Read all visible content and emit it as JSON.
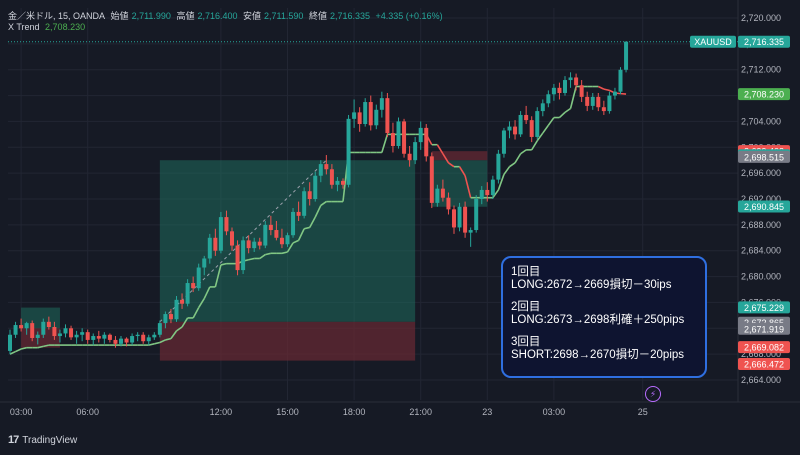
{
  "header": {
    "instrument": "金／米ドル, 15, OANDA",
    "open_label": "始値",
    "open_value": "2,711.990",
    "high_label": "高値",
    "high_value": "2,716.400",
    "low_label": "安値",
    "low_value": "2,711.590",
    "close_label": "終値",
    "close_value": "2,716.335",
    "change": "+4.335 (+0.16%)",
    "indicator_name": "X Trend",
    "indicator_value": "2,708.230"
  },
  "note": {
    "entries": [
      {
        "title": "1回目",
        "text": "LONG:2672→2669損切－30ips"
      },
      {
        "title": "2回目",
        "text": "LONG:2673→2698利確＋250pips"
      },
      {
        "title": "3回目",
        "text": "SHORT:2698→2670損切－20pips"
      }
    ]
  },
  "footer": {
    "brand": "TradingView",
    "logo": "17"
  },
  "colors": {
    "up": "#26a69a",
    "down": "#ef5350",
    "trend_up": "#81c784",
    "trend_down": "#ef5350",
    "profit_zone": "#1f6b5c",
    "loss_zone": "#6a2a33",
    "note_border": "#2f6fe0"
  },
  "chart_data": {
    "type": "candlestick",
    "y_axis": {
      "range": [
        2664,
        2720
      ],
      "ticks": [
        2720,
        2716,
        2712,
        2708,
        2704,
        2700,
        2696,
        2692,
        2688,
        2684,
        2680,
        2676,
        2672,
        2668,
        2664
      ],
      "tick_labels": [
        "2,720.000",
        "2,716.000",
        "2,712.000",
        "2,708.000",
        "2,704.000",
        "2,700.000",
        "2,696.000",
        "2,692.000",
        "2,688.000",
        "2,684.000",
        "2,680.000",
        "2,676.000",
        "2,672.000",
        "2,668.000",
        "2,664.000"
      ],
      "grid": true
    },
    "x_axis": {
      "tick_labels": [
        {
          "bar": 2,
          "label": "03:00"
        },
        {
          "bar": 14,
          "label": "06:00"
        },
        {
          "bar": 38,
          "label": "12:00"
        },
        {
          "bar": 50,
          "label": "15:00"
        },
        {
          "bar": 62,
          "label": "18:00"
        },
        {
          "bar": 74,
          "label": "21:00"
        },
        {
          "bar": 86,
          "label": "23"
        },
        {
          "bar": 98,
          "label": "03:00"
        },
        {
          "bar": 114,
          "label": "25"
        }
      ]
    },
    "price_labels": [
      {
        "value": 2716.335,
        "label": "2,716.335",
        "tag": "XAUUSD",
        "color": "#26a69a"
      },
      {
        "value": 2708.23,
        "label": "2,708.230",
        "color": "#4caf50"
      },
      {
        "value": 2699.402,
        "label": "2,699.402",
        "color": "#ef5350"
      },
      {
        "value": 2698.77,
        "label": "2,698.770",
        "color": "#26a69a"
      },
      {
        "value": 2698.515,
        "label": "2,698.515",
        "color": "#787b86"
      },
      {
        "value": 2690.845,
        "label": "2,690.845",
        "color": "#26a69a"
      },
      {
        "value": 2675.229,
        "label": "2,675.229",
        "color": "#26a69a"
      },
      {
        "value": 2672.865,
        "label": "2,672.865",
        "color": "#787b86"
      },
      {
        "value": 2671.919,
        "label": "2,671.919",
        "color": "#787b86"
      },
      {
        "value": 2669.082,
        "label": "2,669.082",
        "color": "#ef5350"
      },
      {
        "value": 2666.472,
        "label": "2,666.472",
        "color": "#ef5350"
      }
    ],
    "position_boxes": [
      {
        "side": "long",
        "start_bar": 2,
        "end_bar": 9,
        "entry": 2672,
        "target": 2675.2,
        "stop": 2669
      },
      {
        "side": "long",
        "start_bar": 27,
        "end_bar": 73,
        "entry": 2673,
        "target": 2698,
        "stop": 2667
      },
      {
        "side": "short",
        "start_bar": 76,
        "end_bar": 86,
        "entry": 2698,
        "target": 2690.8,
        "stop": 2699.4
      }
    ],
    "candles": [
      [
        2668.5,
        2671.8,
        2668.0,
        2671.0
      ],
      [
        2671.0,
        2673.0,
        2670.5,
        2672.5
      ],
      [
        2672.5,
        2673.5,
        2671.5,
        2672.0
      ],
      [
        2672.0,
        2673.0,
        2671.0,
        2672.8
      ],
      [
        2672.8,
        2673.2,
        2670.0,
        2670.5
      ],
      [
        2670.5,
        2671.5,
        2669.5,
        2671.0
      ],
      [
        2671.0,
        2673.5,
        2670.5,
        2673.0
      ],
      [
        2673.0,
        2673.8,
        2671.8,
        2672.2
      ],
      [
        2672.2,
        2673.0,
        2670.2,
        2670.8
      ],
      [
        2670.8,
        2671.8,
        2669.8,
        2671.2
      ],
      [
        2671.2,
        2672.6,
        2670.6,
        2672.0
      ],
      [
        2672.0,
        2672.4,
        2670.2,
        2670.6
      ],
      [
        2670.6,
        2671.6,
        2669.6,
        2671.0
      ],
      [
        2671.0,
        2672.0,
        2670.0,
        2671.4
      ],
      [
        2671.4,
        2671.8,
        2669.6,
        2670.2
      ],
      [
        2670.2,
        2671.2,
        2669.4,
        2670.8
      ],
      [
        2670.8,
        2671.6,
        2669.8,
        2670.4
      ],
      [
        2670.4,
        2671.4,
        2669.6,
        2671.0
      ],
      [
        2671.0,
        2671.2,
        2669.8,
        2670.2
      ],
      [
        2670.2,
        2670.8,
        2669.0,
        2669.6
      ],
      [
        2669.6,
        2670.8,
        2669.2,
        2670.4
      ],
      [
        2670.4,
        2670.6,
        2669.2,
        2669.8
      ],
      [
        2669.8,
        2671.2,
        2669.4,
        2670.8
      ],
      [
        2670.8,
        2671.4,
        2670.0,
        2671.0
      ],
      [
        2671.0,
        2671.4,
        2669.6,
        2670.0
      ],
      [
        2670.0,
        2671.0,
        2669.4,
        2670.6
      ],
      [
        2670.6,
        2671.4,
        2670.2,
        2671.0
      ],
      [
        2671.0,
        2673.2,
        2670.6,
        2672.8
      ],
      [
        2672.8,
        2674.6,
        2672.0,
        2674.2
      ],
      [
        2674.2,
        2675.0,
        2672.8,
        2673.4
      ],
      [
        2673.4,
        2677.0,
        2673.0,
        2676.4
      ],
      [
        2676.4,
        2677.4,
        2675.0,
        2675.8
      ],
      [
        2675.8,
        2679.6,
        2675.4,
        2679.0
      ],
      [
        2679.0,
        2680.0,
        2677.6,
        2678.2
      ],
      [
        2678.2,
        2682.0,
        2677.8,
        2681.4
      ],
      [
        2681.4,
        2683.2,
        2680.2,
        2682.8
      ],
      [
        2682.8,
        2686.6,
        2682.0,
        2686.0
      ],
      [
        2686.0,
        2687.4,
        2683.2,
        2684.0
      ],
      [
        2684.0,
        2690.0,
        2683.6,
        2689.2
      ],
      [
        2689.2,
        2690.2,
        2686.4,
        2687.0
      ],
      [
        2687.0,
        2687.6,
        2684.0,
        2684.8
      ],
      [
        2684.8,
        2685.6,
        2680.2,
        2681.0
      ],
      [
        2681.0,
        2686.2,
        2680.4,
        2685.6
      ],
      [
        2685.6,
        2686.4,
        2683.6,
        2684.4
      ],
      [
        2684.4,
        2686.0,
        2683.8,
        2685.4
      ],
      [
        2685.4,
        2686.0,
        2684.2,
        2684.8
      ],
      [
        2684.8,
        2688.6,
        2684.4,
        2688.0
      ],
      [
        2688.0,
        2689.4,
        2686.4,
        2687.2
      ],
      [
        2687.2,
        2688.6,
        2685.6,
        2686.0
      ],
      [
        2686.0,
        2687.4,
        2684.4,
        2685.0
      ],
      [
        2685.0,
        2686.8,
        2684.6,
        2686.4
      ],
      [
        2686.4,
        2690.6,
        2686.0,
        2690.0
      ],
      [
        2690.0,
        2691.6,
        2688.6,
        2689.4
      ],
      [
        2689.4,
        2693.8,
        2689.0,
        2693.2
      ],
      [
        2693.2,
        2694.6,
        2691.0,
        2692.0
      ],
      [
        2692.0,
        2696.2,
        2691.6,
        2695.6
      ],
      [
        2695.6,
        2698.0,
        2694.6,
        2697.4
      ],
      [
        2697.4,
        2698.8,
        2695.8,
        2696.6
      ],
      [
        2696.6,
        2697.4,
        2693.6,
        2694.2
      ],
      [
        2694.2,
        2695.4,
        2693.2,
        2694.8
      ],
      [
        2694.8,
        2695.2,
        2693.6,
        2694.2
      ],
      [
        2694.2,
        2705.0,
        2693.8,
        2704.4
      ],
      [
        2704.4,
        2707.4,
        2703.0,
        2705.4
      ],
      [
        2705.4,
        2706.2,
        2702.4,
        2703.6
      ],
      [
        2703.6,
        2707.6,
        2703.2,
        2707.0
      ],
      [
        2707.0,
        2708.0,
        2702.6,
        2703.4
      ],
      [
        2703.4,
        2706.6,
        2702.8,
        2705.8
      ],
      [
        2705.8,
        2708.6,
        2704.6,
        2707.6
      ],
      [
        2707.6,
        2708.4,
        2701.6,
        2702.2
      ],
      [
        2702.2,
        2703.8,
        2699.2,
        2700.2
      ],
      [
        2700.2,
        2704.6,
        2699.8,
        2704.0
      ],
      [
        2704.0,
        2704.4,
        2698.4,
        2699.0
      ],
      [
        2699.0,
        2700.2,
        2697.0,
        2698.0
      ],
      [
        2698.0,
        2701.6,
        2697.4,
        2700.8
      ],
      [
        2700.8,
        2704.0,
        2699.6,
        2703.0
      ],
      [
        2703.0,
        2703.6,
        2697.8,
        2698.6
      ],
      [
        2698.6,
        2699.2,
        2690.6,
        2691.4
      ],
      [
        2691.4,
        2694.2,
        2690.8,
        2693.6
      ],
      [
        2693.6,
        2695.0,
        2691.6,
        2692.2
      ],
      [
        2692.2,
        2693.0,
        2689.6,
        2690.4
      ],
      [
        2690.4,
        2691.0,
        2686.6,
        2687.6
      ],
      [
        2687.6,
        2691.4,
        2687.0,
        2690.8
      ],
      [
        2690.8,
        2691.6,
        2686.0,
        2686.8
      ],
      [
        2686.8,
        2687.6,
        2684.6,
        2687.2
      ],
      [
        2687.2,
        2692.6,
        2686.8,
        2692.0
      ],
      [
        2692.0,
        2694.0,
        2691.2,
        2693.4
      ],
      [
        2693.4,
        2694.6,
        2691.6,
        2692.6
      ],
      [
        2692.6,
        2695.6,
        2692.0,
        2695.0
      ],
      [
        2695.0,
        2699.6,
        2694.4,
        2699.0
      ],
      [
        2699.0,
        2703.0,
        2698.4,
        2702.6
      ],
      [
        2702.6,
        2704.0,
        2701.4,
        2703.2
      ],
      [
        2703.2,
        2704.2,
        2701.2,
        2702.0
      ],
      [
        2702.0,
        2705.6,
        2701.6,
        2705.0
      ],
      [
        2705.0,
        2706.4,
        2703.6,
        2704.2
      ],
      [
        2704.2,
        2704.8,
        2700.8,
        2701.6
      ],
      [
        2701.6,
        2706.2,
        2701.2,
        2705.6
      ],
      [
        2705.6,
        2707.4,
        2704.8,
        2706.8
      ],
      [
        2706.8,
        2708.8,
        2706.2,
        2708.2
      ],
      [
        2708.2,
        2709.8,
        2707.2,
        2709.2
      ],
      [
        2709.2,
        2710.0,
        2707.4,
        2708.4
      ],
      [
        2708.4,
        2711.0,
        2708.0,
        2710.4
      ],
      [
        2710.4,
        2711.6,
        2709.2,
        2710.8
      ],
      [
        2710.8,
        2711.4,
        2708.8,
        2709.6
      ],
      [
        2709.6,
        2710.4,
        2707.0,
        2707.8
      ],
      [
        2707.8,
        2708.6,
        2705.6,
        2706.4
      ],
      [
        2706.4,
        2708.4,
        2705.8,
        2707.8
      ],
      [
        2707.8,
        2708.4,
        2705.6,
        2706.2
      ],
      [
        2706.2,
        2707.2,
        2705.0,
        2705.6
      ],
      [
        2705.6,
        2708.6,
        2705.2,
        2708.0
      ],
      [
        2708.0,
        2709.2,
        2707.4,
        2708.6
      ],
      [
        2708.6,
        2712.4,
        2708.2,
        2711.99
      ],
      [
        2711.99,
        2716.4,
        2711.59,
        2716.335
      ]
    ],
    "x_trend": [
      2668.0,
      2668.4,
      2668.8,
      2669.0,
      2669.0,
      2669.0,
      2669.2,
      2669.4,
      2669.4,
      2669.4,
      2669.4,
      2669.4,
      2669.4,
      2669.4,
      2669.4,
      2669.4,
      2669.4,
      2669.4,
      2669.4,
      2669.4,
      2669.4,
      2669.4,
      2669.4,
      2669.4,
      2669.4,
      2669.4,
      2669.6,
      2669.8,
      2670.2,
      2670.4,
      2671.6,
      2672.2,
      2673.6,
      2673.6,
      2675.2,
      2676.6,
      2678.4,
      2678.4,
      2681.8,
      2682.0,
      2682.0,
      2682.0,
      2682.4,
      2682.6,
      2682.8,
      2682.8,
      2683.4,
      2683.6,
      2683.6,
      2683.6,
      2683.8,
      2685.2,
      2685.6,
      2687.4,
      2687.6,
      2689.2,
      2691.0,
      2691.6,
      2691.6,
      2691.6,
      2691.6,
      2699.2,
      2699.2,
      2699.2,
      2699.2,
      2699.2,
      2699.2,
      2699.2,
      2702.0,
      2702.0,
      2702.0,
      2702.0,
      2702.0,
      2702.0,
      2702.0,
      2702.0,
      2700.4,
      2700.4,
      2699.0,
      2697.6,
      2697.0,
      2697.0,
      2695.6,
      2692.2,
      2692.2,
      2692.2,
      2692.2,
      2692.2,
      2693.4,
      2695.8,
      2697.0,
      2697.6,
      2699.0,
      2699.6,
      2699.6,
      2701.0,
      2702.2,
      2703.4,
      2704.6,
      2704.6,
      2705.4,
      2706.0,
      2709.4,
      2709.4,
      2709.4,
      2709.4,
      2709.4,
      2709.0,
      2708.8,
      2708.4,
      2708.3,
      2708.23
    ]
  }
}
